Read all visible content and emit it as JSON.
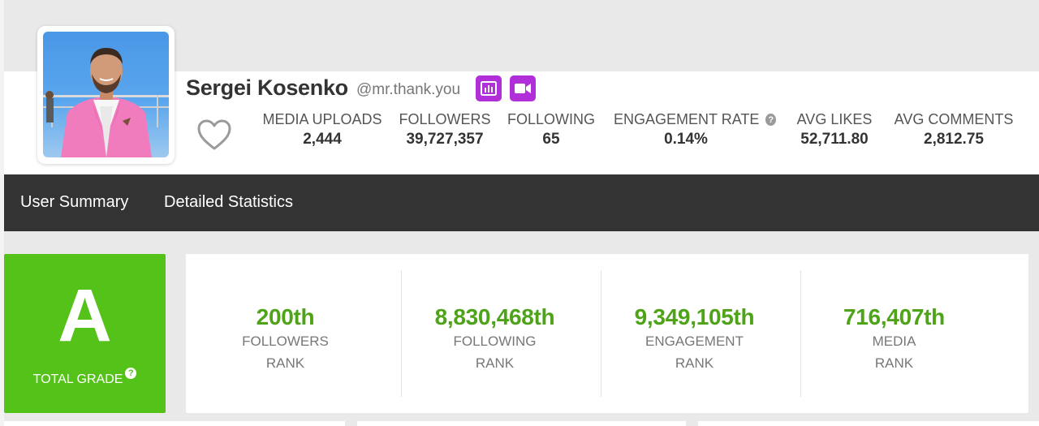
{
  "profile": {
    "name": "Sergei Kosenko",
    "handle": "@mr.thank.you",
    "avatar_alt": "profile-photo",
    "favorite_icon": "heart-outline-icon",
    "badges": [
      {
        "icon": "bar-chart-icon",
        "color": "#b12fd8"
      },
      {
        "icon": "video-camera-icon",
        "color": "#b12fd8"
      }
    ]
  },
  "stats": [
    {
      "label": "MEDIA UPLOADS",
      "value": "2,444"
    },
    {
      "label": "FOLLOWERS",
      "value": "39,727,357"
    },
    {
      "label": "FOLLOWING",
      "value": "65"
    },
    {
      "label": "ENGAGEMENT RATE",
      "value": "0.14%",
      "help_icon": "question-mark-icon"
    },
    {
      "label": "AVG LIKES",
      "value": "52,711.80"
    },
    {
      "label": "AVG COMMENTS",
      "value": "2,812.75"
    }
  ],
  "nav": {
    "items": [
      {
        "label": "User Summary"
      },
      {
        "label": "Detailed Statistics"
      }
    ]
  },
  "grade": {
    "letter": "A",
    "label": "TOTAL GRADE",
    "help_icon": "question-mark-icon",
    "color": "#55c21a"
  },
  "ranks": [
    {
      "value": "200th",
      "line1": "FOLLOWERS",
      "line2": "RANK"
    },
    {
      "value": "8,830,468th",
      "line1": "FOLLOWING",
      "line2": "RANK"
    },
    {
      "value": "9,349,105th",
      "line1": "ENGAGEMENT",
      "line2": "RANK"
    },
    {
      "value": "716,407th",
      "line1": "MEDIA",
      "line2": "RANK"
    }
  ],
  "colors": {
    "accent_purple": "#b12fd8",
    "grade_green": "#55c21a",
    "rank_green": "#4fa319",
    "navbar": "#333333"
  }
}
